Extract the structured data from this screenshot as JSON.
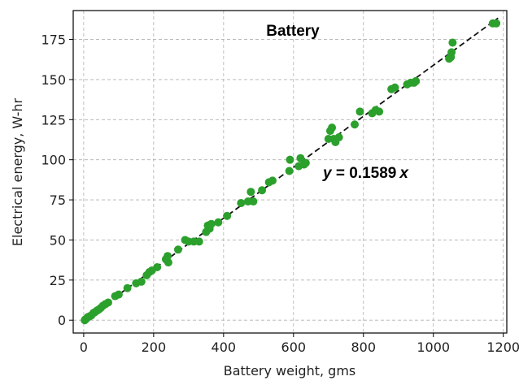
{
  "chart_data": {
    "type": "scatter",
    "title": "Battery",
    "xlabel": "Battery weight, gms",
    "ylabel": "Electrical energy, W-hr",
    "xlim": [
      -30,
      1210
    ],
    "ylim": [
      -8,
      193
    ],
    "xticks": [
      0,
      200,
      400,
      600,
      800,
      1000,
      1200
    ],
    "yticks": [
      0,
      25,
      50,
      75,
      100,
      125,
      150,
      175
    ],
    "grid": true,
    "point_color": "#2ca02c",
    "fit_line_color": "#111111",
    "fit": {
      "slope": 0.1589,
      "x_range": [
        0,
        1185
      ]
    },
    "equation": {
      "y": "y",
      "eq": " = 0.1589",
      "x": "x"
    },
    "points": [
      [
        3,
        0
      ],
      [
        5,
        0.5
      ],
      [
        8,
        1
      ],
      [
        12,
        2
      ],
      [
        18,
        2.5
      ],
      [
        22,
        3
      ],
      [
        28,
        4.5
      ],
      [
        32,
        5
      ],
      [
        38,
        6
      ],
      [
        42,
        6.5
      ],
      [
        48,
        7.5
      ],
      [
        55,
        9
      ],
      [
        62,
        10
      ],
      [
        70,
        11
      ],
      [
        90,
        15
      ],
      [
        100,
        16
      ],
      [
        125,
        20
      ],
      [
        150,
        23
      ],
      [
        165,
        24
      ],
      [
        180,
        28
      ],
      [
        188,
        30
      ],
      [
        195,
        31
      ],
      [
        210,
        33
      ],
      [
        235,
        38
      ],
      [
        240,
        40
      ],
      [
        242,
        36
      ],
      [
        270,
        44
      ],
      [
        290,
        50
      ],
      [
        300,
        49
      ],
      [
        315,
        49
      ],
      [
        330,
        49
      ],
      [
        350,
        55
      ],
      [
        355,
        59
      ],
      [
        360,
        57
      ],
      [
        365,
        60
      ],
      [
        385,
        61
      ],
      [
        410,
        65
      ],
      [
        450,
        73
      ],
      [
        470,
        74
      ],
      [
        478,
        80
      ],
      [
        485,
        74
      ],
      [
        510,
        81
      ],
      [
        530,
        86
      ],
      [
        540,
        87
      ],
      [
        588,
        93
      ],
      [
        590,
        100
      ],
      [
        615,
        96
      ],
      [
        620,
        101
      ],
      [
        630,
        97
      ],
      [
        635,
        98
      ],
      [
        700,
        113
      ],
      [
        705,
        118
      ],
      [
        710,
        120
      ],
      [
        715,
        113
      ],
      [
        720,
        111
      ],
      [
        730,
        114
      ],
      [
        775,
        122
      ],
      [
        790,
        130
      ],
      [
        825,
        129
      ],
      [
        835,
        131
      ],
      [
        845,
        130
      ],
      [
        880,
        144
      ],
      [
        890,
        145
      ],
      [
        925,
        147
      ],
      [
        935,
        148
      ],
      [
        945,
        148
      ],
      [
        950,
        149
      ],
      [
        1045,
        163
      ],
      [
        1050,
        164
      ],
      [
        1052,
        167
      ],
      [
        1055,
        173
      ],
      [
        1170,
        185
      ],
      [
        1180,
        185
      ]
    ]
  }
}
